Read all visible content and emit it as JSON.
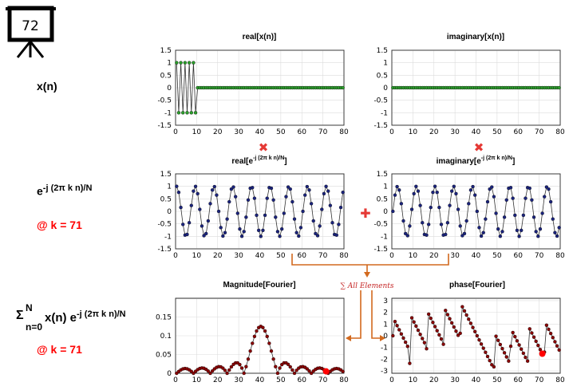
{
  "slide": {
    "number": "72"
  },
  "labels": {
    "row1": "x(n)",
    "row2_base": "e",
    "row2_exp": "-j (2π k n)/N",
    "row2_k": "@ k = 71",
    "row3_sigma": "Σ",
    "row3_sup": "N",
    "row3_sub": "n=0",
    "row3_term": "x(n) e",
    "row3_exp": "-j (2π k n)/N",
    "row3_k": "@ k = 71"
  },
  "plots": {
    "real_x": {
      "title": "real[x(n)]"
    },
    "imag_x": {
      "title": "imaginary[x(n)]"
    },
    "real_e": {
      "title_base": "real[e",
      "title_exp": "-j (2π k n)/N",
      "title_end": "]"
    },
    "imag_e": {
      "title_base": "imaginary[e",
      "title_exp": "-j (2π k n)/N",
      "title_end": "]"
    },
    "mag": {
      "title": "Magnitude[Fourier]"
    },
    "phase": {
      "title": "phase[Fourier]"
    }
  },
  "operators": {
    "multiply": "✖",
    "add": "✚",
    "sum_note": "∑ All Elements"
  },
  "colors": {
    "green": "#2ca02c",
    "navy": "#1a237e",
    "darkred": "#8b0000",
    "highlight": "#ff0000",
    "arrow": "#d2691e",
    "operator": "#e53935"
  },
  "chart_data": [
    {
      "id": "real_x",
      "type": "scatter",
      "x_range": [
        0,
        80
      ],
      "ylim": [
        -1.5,
        1.5
      ],
      "xticks": [
        0,
        10,
        20,
        30,
        40,
        50,
        60,
        70,
        80
      ],
      "yticks": [
        -1.5,
        -1,
        -0.5,
        0,
        0.5,
        1,
        1.5
      ],
      "signal": "x(n) = (-1)^n for n = 0..9, 0 for n = 10..79"
    },
    {
      "id": "imag_x",
      "type": "scatter",
      "x_range": [
        0,
        80
      ],
      "ylim": [
        -1.5,
        1.5
      ],
      "xticks": [
        0,
        10,
        20,
        30,
        40,
        50,
        60,
        70,
        80
      ],
      "yticks": [
        -1.5,
        -1,
        -0.5,
        0,
        0.5,
        1,
        1.5
      ],
      "signal": "0 for n = 0..79"
    },
    {
      "id": "real_e",
      "type": "scatter",
      "x_range": [
        0,
        80
      ],
      "ylim": [
        -1.5,
        1.5
      ],
      "xticks": [
        0,
        10,
        20,
        30,
        40,
        50,
        60,
        70,
        80
      ],
      "yticks": [
        -1.5,
        -1,
        -0.5,
        0,
        0.5,
        1,
        1.5
      ],
      "signal": "cos(2π·71·n/80), n = 0..79"
    },
    {
      "id": "imag_e",
      "type": "scatter",
      "x_range": [
        0,
        80
      ],
      "ylim": [
        -1.5,
        1.5
      ],
      "xticks": [
        0,
        10,
        20,
        30,
        40,
        50,
        60,
        70,
        80
      ],
      "yticks": [
        -1.5,
        -1,
        -0.5,
        0,
        0.5,
        1,
        1.5
      ],
      "signal": "-sin(2π·71·n/80), n = 0..79"
    },
    {
      "id": "mag",
      "type": "scatter",
      "x_range": [
        0,
        80
      ],
      "ylim": [
        0,
        0.2
      ],
      "xticks": [
        0,
        10,
        20,
        30,
        40,
        50,
        60,
        70,
        80
      ],
      "yticks": [
        0,
        0.05,
        0.1,
        0.15
      ],
      "peak": {
        "k": 40,
        "value": 0.125
      },
      "highlight_k": 71
    },
    {
      "id": "phase",
      "type": "scatter",
      "x_range": [
        0,
        80
      ],
      "ylim": [
        -3.2,
        3.2
      ],
      "xticks": [
        0,
        10,
        20,
        30,
        40,
        50,
        60,
        70,
        80
      ],
      "yticks": [
        -3,
        -2,
        -1,
        0,
        1,
        2,
        3
      ],
      "highlight_k": 71
    }
  ]
}
